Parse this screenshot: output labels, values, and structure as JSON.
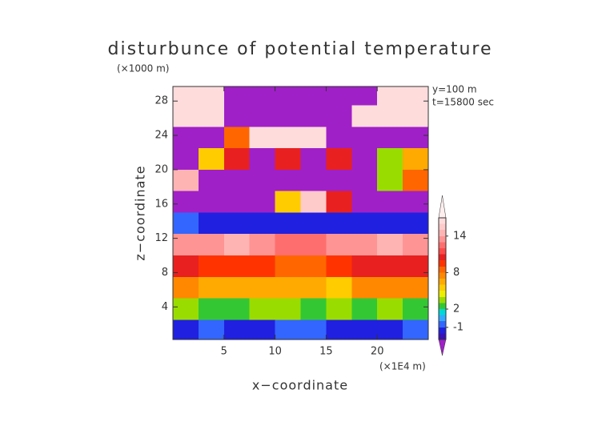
{
  "chart_data": {
    "type": "contour",
    "title": "disturbunce of potential temperature",
    "y_unit": "(×1000 m)",
    "x_unit": "(×1E4 m)",
    "annotations": [
      "y=100 m",
      "t=15800 sec"
    ],
    "xlabel": "x−coordinate",
    "ylabel": "z−coordinate",
    "xlim": [
      0,
      25
    ],
    "ylim": [
      0.2,
      29.7
    ],
    "xticks": [
      5,
      10,
      15,
      20
    ],
    "yticks": [
      4,
      8,
      12,
      16,
      20,
      24,
      28
    ],
    "x": [
      0,
      2.5,
      5,
      7.5,
      10,
      12.5,
      15,
      17.5,
      20,
      22.5,
      25
    ],
    "z_edges": [
      0,
      2.5,
      5,
      7.5,
      10,
      12.5,
      15,
      17.5,
      20,
      22.5,
      25,
      27.5,
      30
    ],
    "field": [
      [
        -2,
        -1,
        -2,
        -2,
        -1,
        -1,
        -2,
        -2,
        -2,
        -1
      ],
      [
        3,
        2,
        2,
        3,
        3,
        2,
        3,
        2,
        3,
        2
      ],
      [
        7,
        6,
        6,
        6,
        6,
        6,
        5,
        7,
        7,
        7
      ],
      [
        10,
        9,
        9,
        9,
        8,
        8,
        9,
        10,
        10,
        10
      ],
      [
        13,
        13,
        14,
        13,
        12,
        12,
        13,
        13,
        14,
        13
      ],
      [
        -1,
        -2,
        -2,
        -2,
        -2,
        -2,
        -2,
        -2,
        -2,
        -2
      ],
      [
        -4,
        -4,
        -4,
        -4,
        5,
        15,
        10,
        -4,
        -4,
        -4
      ],
      [
        14,
        -4,
        -4,
        -4,
        -4,
        -4,
        -4,
        -4,
        3,
        8
      ],
      [
        -4,
        5,
        10,
        -4,
        10,
        -4,
        10,
        -4,
        3,
        6
      ],
      [
        -4,
        -4,
        8,
        16,
        16,
        16,
        -4,
        -4,
        -4,
        -4
      ],
      [
        16,
        16,
        -4,
        -4,
        -4,
        -4,
        -4,
        16,
        16,
        16
      ],
      [
        16,
        16,
        -4,
        -4,
        -4,
        -4,
        -4,
        -4,
        16,
        16
      ]
    ],
    "levels": [
      -3,
      -2,
      -1,
      0,
      1,
      2,
      3,
      4,
      5,
      6,
      7,
      8,
      9,
      10,
      11,
      12,
      13,
      14,
      15,
      16,
      17
    ],
    "colors": [
      "#a020c8",
      "#3a10b8",
      "#2020e0",
      "#3366ff",
      "#33aaff",
      "#00d8d8",
      "#33c833",
      "#99dd00",
      "#eeee00",
      "#ffcc00",
      "#ffaa00",
      "#ff8800",
      "#ff6600",
      "#ff3300",
      "#e82020",
      "#ff4a4a",
      "#ff6e6e",
      "#ff9494",
      "#ffb4b4",
      "#ffcaca",
      "#ffdcdc",
      "#ffeeee"
    ],
    "cbar_ticks": [
      -1,
      2,
      8,
      14
    ]
  }
}
